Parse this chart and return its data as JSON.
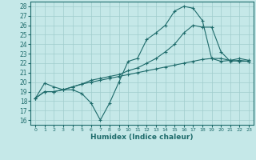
{
  "xlabel": "Humidex (Indice chaleur)",
  "background_color": "#c5e8e8",
  "line_color": "#1e6b6b",
  "grid_color": "#a0cccc",
  "xlim": [
    -0.5,
    23.5
  ],
  "ylim": [
    15.5,
    28.5
  ],
  "yticks": [
    16,
    17,
    18,
    19,
    20,
    21,
    22,
    23,
    24,
    25,
    26,
    27,
    28
  ],
  "xticks": [
    0,
    1,
    2,
    3,
    4,
    5,
    6,
    7,
    8,
    9,
    10,
    11,
    12,
    13,
    14,
    15,
    16,
    17,
    18,
    19,
    20,
    21,
    22,
    23
  ],
  "series": [
    {
      "x": [
        0,
        1,
        2,
        3,
        4,
        5,
        6,
        7,
        8,
        9,
        10,
        11,
        12,
        13,
        14,
        15,
        16,
        17,
        18,
        19,
        20,
        21,
        22,
        23
      ],
      "y": [
        18.3,
        19.9,
        19.5,
        19.2,
        19.2,
        18.8,
        17.8,
        16.0,
        17.8,
        20.0,
        22.2,
        22.5,
        24.5,
        25.2,
        26.0,
        27.5,
        28.0,
        27.8,
        26.5,
        22.5,
        22.2,
        22.3,
        22.5,
        22.3
      ]
    },
    {
      "x": [
        0,
        1,
        2,
        3,
        4,
        5,
        6,
        7,
        8,
        9,
        10,
        11,
        12,
        13,
        14,
        15,
        16,
        17,
        18,
        19,
        20,
        21,
        22,
        23
      ],
      "y": [
        18.3,
        19.0,
        19.0,
        19.2,
        19.5,
        19.8,
        20.2,
        20.4,
        20.6,
        20.8,
        21.2,
        21.5,
        22.0,
        22.5,
        23.2,
        24.0,
        25.2,
        26.0,
        25.8,
        25.8,
        23.2,
        22.2,
        22.3,
        22.2
      ]
    },
    {
      "x": [
        0,
        1,
        2,
        3,
        4,
        5,
        6,
        7,
        8,
        9,
        10,
        11,
        12,
        13,
        14,
        15,
        16,
        17,
        18,
        19,
        20,
        21,
        22,
        23
      ],
      "y": [
        18.3,
        19.0,
        19.0,
        19.2,
        19.5,
        19.8,
        20.0,
        20.2,
        20.4,
        20.6,
        20.8,
        21.0,
        21.2,
        21.4,
        21.6,
        21.8,
        22.0,
        22.2,
        22.4,
        22.5,
        22.5,
        22.3,
        22.2,
        22.2
      ]
    }
  ]
}
